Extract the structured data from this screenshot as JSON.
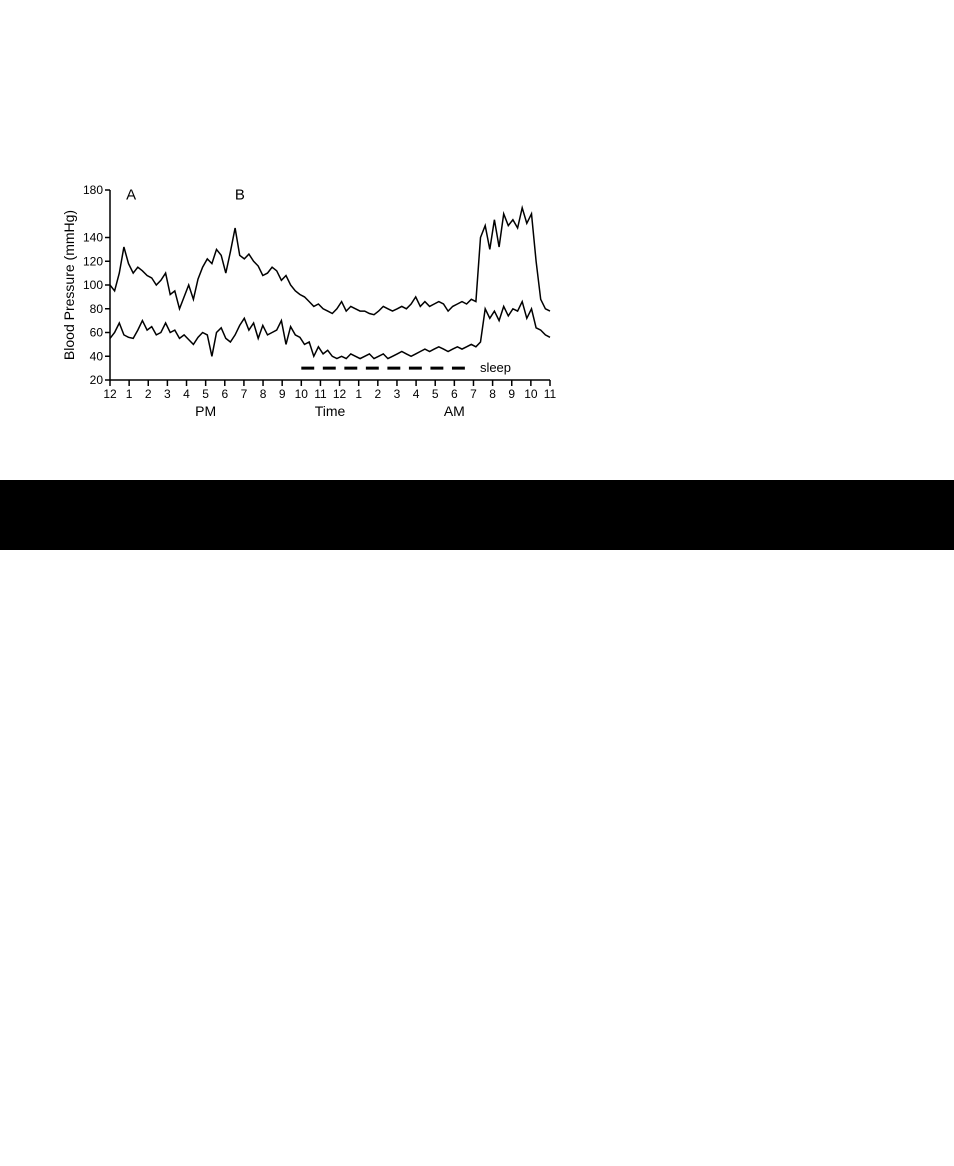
{
  "chart": {
    "type": "line",
    "background_color": "#ffffff",
    "line_color": "#000000",
    "line_width": 1.5,
    "y": {
      "label": "Blood Pressure (mmHg)",
      "label_fontsize": 14,
      "min": 20,
      "max": 180,
      "ticks": [
        20,
        40,
        60,
        80,
        100,
        120,
        140,
        180
      ],
      "tick_fontsize": 12
    },
    "x": {
      "label": "Time",
      "label_fontsize": 14,
      "ticks": [
        "12",
        "1",
        "2",
        "3",
        "4",
        "5",
        "6",
        "7",
        "8",
        "9",
        "10",
        "11",
        "12",
        "1",
        "2",
        "3",
        "4",
        "5",
        "6",
        "7",
        "8",
        "9",
        "10",
        "11"
      ],
      "tick_fontsize": 12,
      "pm_label": "PM",
      "am_label": "AM"
    },
    "markers": {
      "A": "A",
      "B": "B"
    },
    "sleep": {
      "label": "sleep",
      "start_index": 10,
      "end_index": 19,
      "dash_segments": 8,
      "dash_y": 30
    },
    "series": {
      "systolic": [
        100,
        95,
        110,
        132,
        118,
        110,
        115,
        112,
        108,
        106,
        100,
        104,
        110,
        92,
        95,
        80,
        90,
        100,
        88,
        105,
        115,
        122,
        118,
        130,
        125,
        110,
        128,
        148,
        125,
        122,
        126,
        120,
        116,
        108,
        110,
        115,
        112,
        104,
        108,
        100,
        95,
        92,
        90,
        86,
        82,
        84,
        80,
        78,
        76,
        80,
        86,
        78,
        82,
        80,
        78,
        78,
        76,
        75,
        78,
        82,
        80,
        78,
        80,
        82,
        80,
        84,
        90,
        82,
        86,
        82,
        84,
        86,
        84,
        78,
        82,
        84,
        86,
        84,
        88,
        86,
        140,
        150,
        130,
        155,
        132,
        160,
        150,
        155,
        148,
        165,
        152,
        160,
        120,
        88,
        80,
        78
      ],
      "diastolic": [
        55,
        60,
        68,
        58,
        56,
        55,
        62,
        70,
        62,
        65,
        58,
        60,
        68,
        60,
        62,
        55,
        58,
        54,
        50,
        56,
        60,
        58,
        40,
        60,
        64,
        55,
        52,
        58,
        66,
        72,
        62,
        68,
        55,
        66,
        58,
        60,
        62,
        70,
        50,
        65,
        58,
        56,
        50,
        52,
        40,
        48,
        42,
        45,
        40,
        38,
        40,
        38,
        42,
        40,
        38,
        40,
        42,
        38,
        40,
        42,
        38,
        40,
        42,
        44,
        42,
        40,
        42,
        44,
        46,
        44,
        46,
        48,
        46,
        44,
        46,
        48,
        46,
        48,
        50,
        48,
        52,
        80,
        72,
        78,
        70,
        82,
        74,
        80,
        78,
        86,
        72,
        80,
        64,
        62,
        58,
        56
      ]
    }
  },
  "black_bar_color": "#000000"
}
